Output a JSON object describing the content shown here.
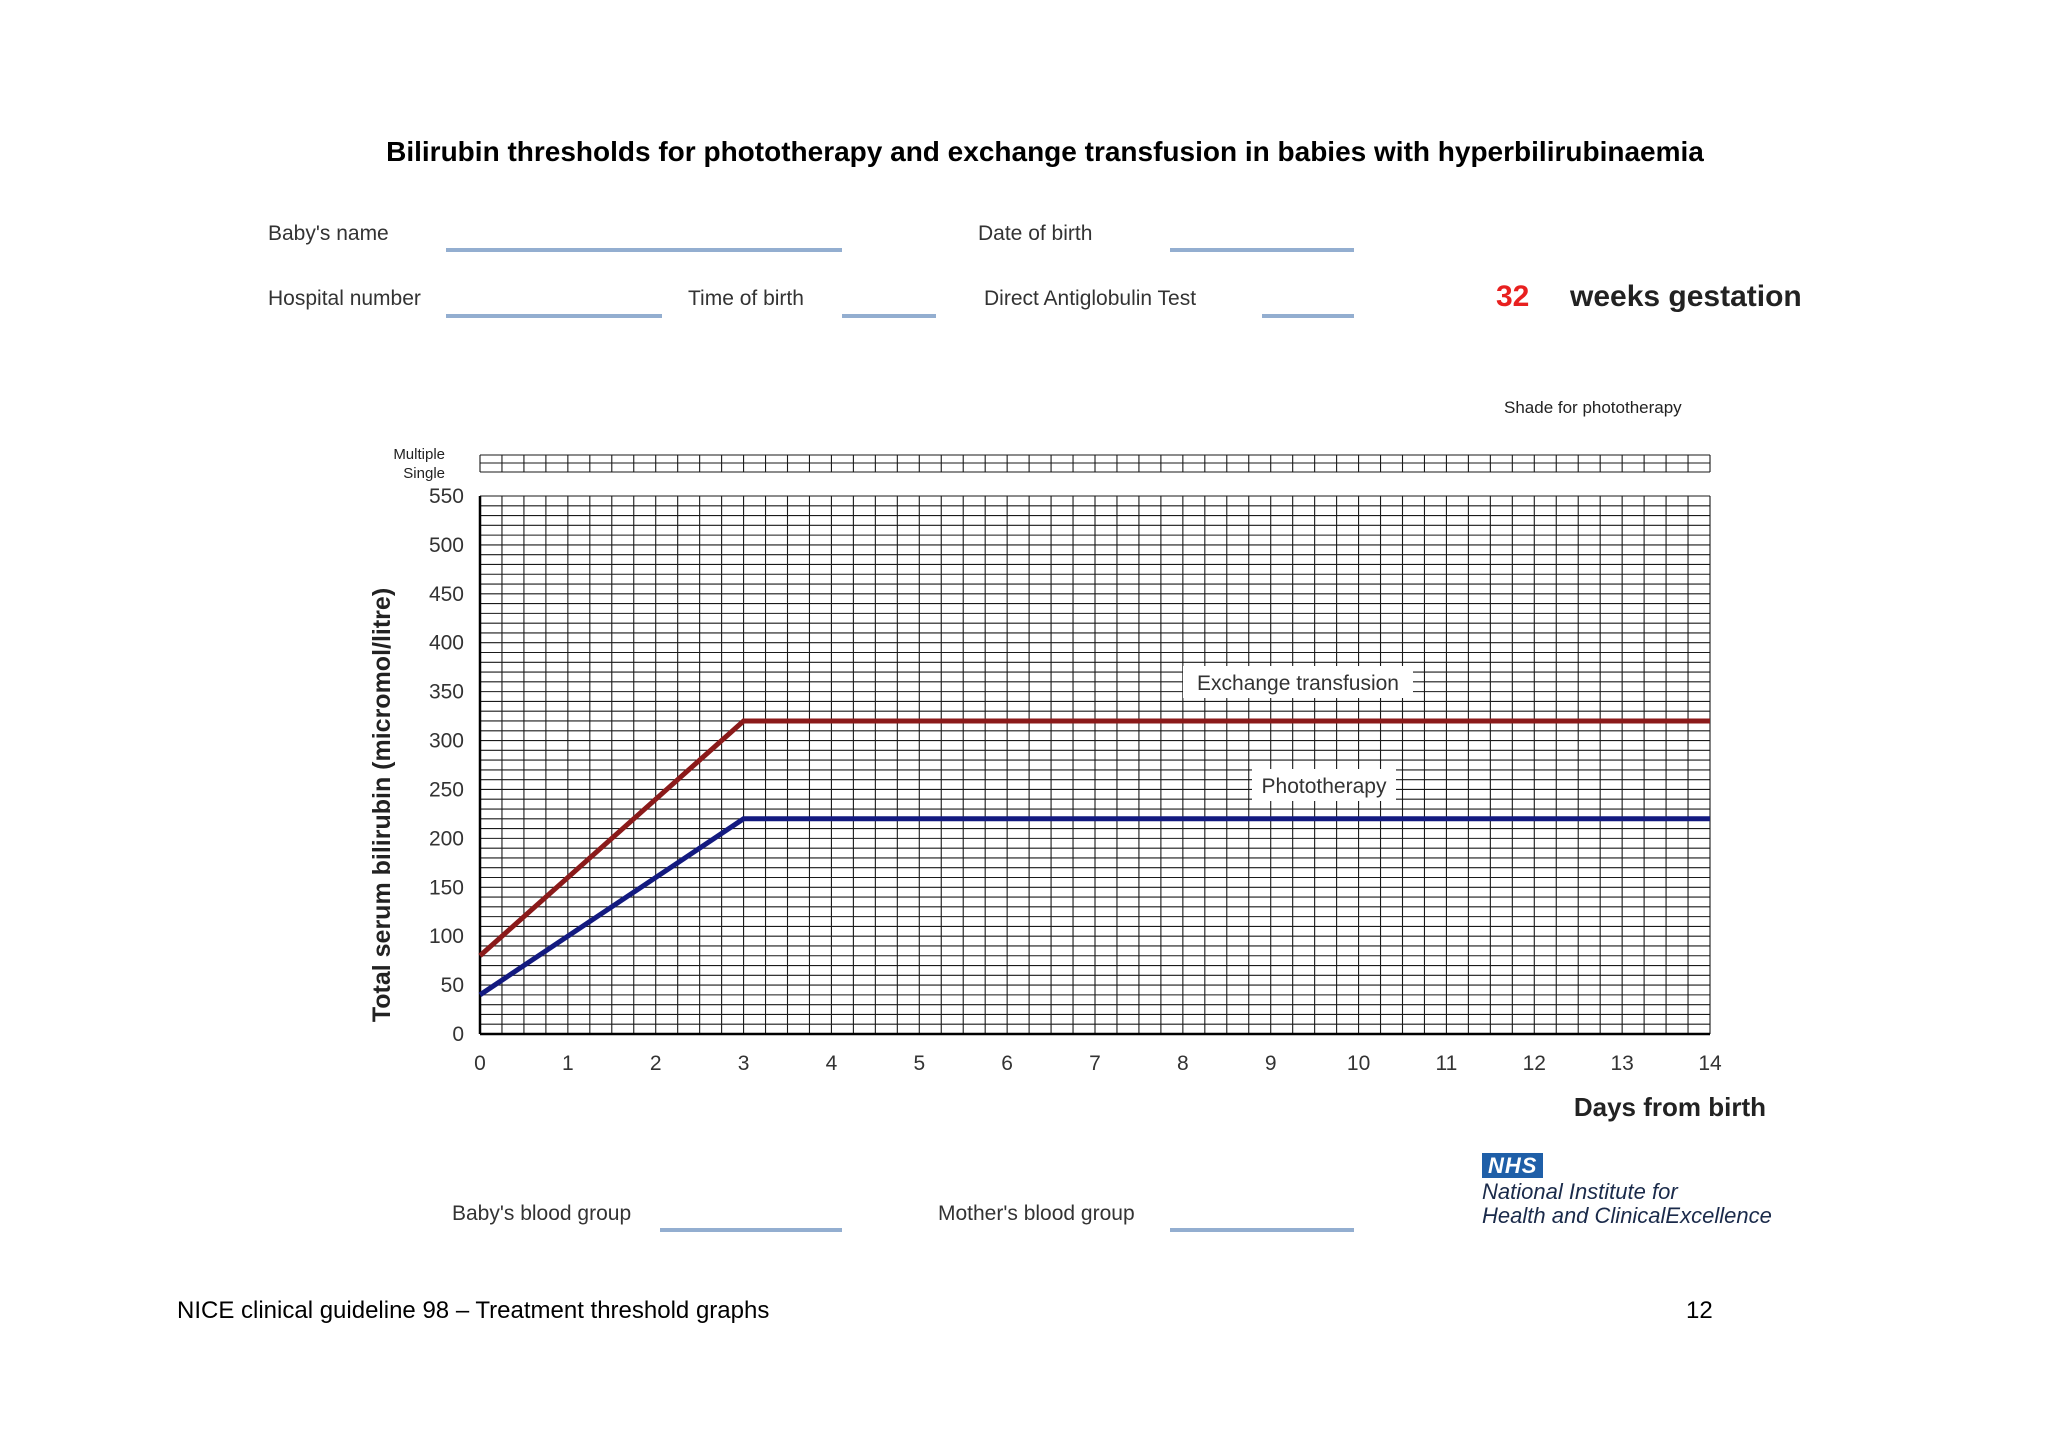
{
  "title": "Bilirubin thresholds for phototherapy and exchange transfusion in babies with hyperbilirubinaemia",
  "form": {
    "babys_name": "Baby's name",
    "date_of_birth": "Date of birth",
    "hospital_number": "Hospital number",
    "time_of_birth": "Time of birth",
    "direct_antiglobulin_test": "Direct Antiglobulin Test",
    "babys_blood_group": "Baby's blood group",
    "mothers_blood_group": "Mother's blood group"
  },
  "gestation": {
    "number": "32",
    "label": "weeks gestation"
  },
  "shade_label": "Shade for phototherapy",
  "chart_data": {
    "type": "line",
    "ylabel": "Total serum bilirubin  (micromol/litre)",
    "xlabel": "Days from birth",
    "ylim": [
      0,
      550
    ],
    "xlim": [
      0,
      14
    ],
    "x_ticks": [
      0,
      1,
      2,
      3,
      4,
      5,
      6,
      7,
      8,
      9,
      10,
      11,
      12,
      13,
      14
    ],
    "y_ticks": [
      0,
      50,
      100,
      150,
      200,
      250,
      300,
      350,
      400,
      450,
      500,
      550
    ],
    "grid": true,
    "phototherapy_rows": [
      "Multiple",
      "Single"
    ],
    "series": [
      {
        "name": "Exchange transfusion",
        "color": "#8b1a1a",
        "x": [
          0,
          3,
          14
        ],
        "y": [
          80,
          320,
          320
        ]
      },
      {
        "name": "Phototherapy",
        "color": "#131a80",
        "x": [
          0,
          3,
          14
        ],
        "y": [
          40,
          220,
          220
        ]
      }
    ]
  },
  "logo": {
    "badge": "NHS",
    "line1": "National Institute for",
    "line2": "Health and ClinicalExcellence"
  },
  "footer": {
    "left": "NICE clinical guideline 98 – Treatment threshold graphs",
    "page": "12"
  }
}
